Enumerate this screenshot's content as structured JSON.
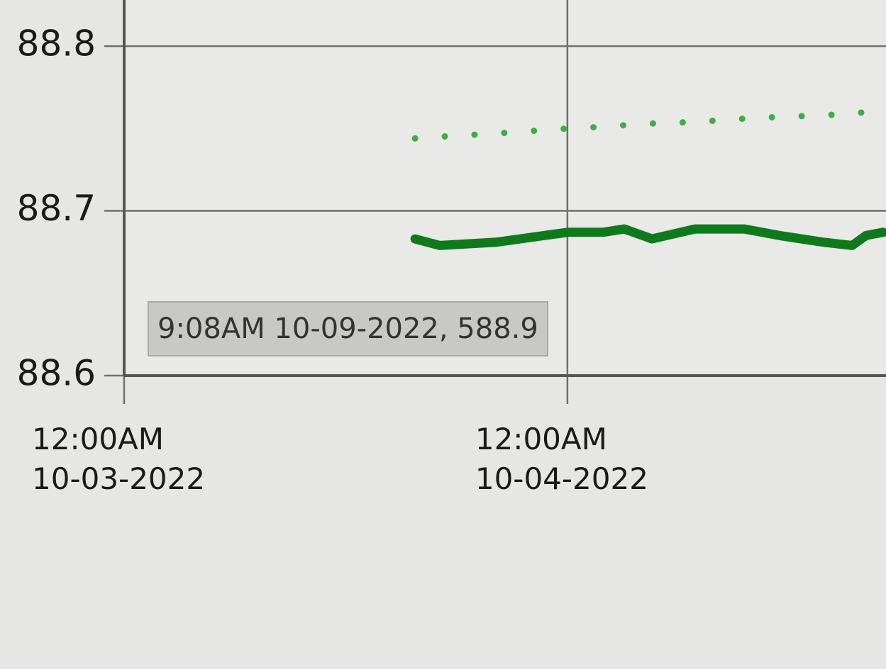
{
  "chart_data": {
    "type": "line",
    "x": [
      "2022-10-03T15:45",
      "2022-10-03T17:05",
      "2022-10-03T20:10",
      "2022-10-04T00:00",
      "2022-10-04T01:55",
      "2022-10-04T03:05",
      "2022-10-04T04:35",
      "2022-10-04T06:55",
      "2022-10-04T09:35",
      "2022-10-04T11:30",
      "2022-10-04T13:50",
      "2022-10-04T15:25",
      "2022-10-04T16:10",
      "2022-10-04T17:05"
    ],
    "series": [
      {
        "color": "#0f7a1c",
        "style": "solid",
        "values": [
          88.683,
          88.679,
          88.681,
          88.687,
          88.687,
          88.689,
          88.683,
          88.689,
          88.689,
          88.685,
          88.681,
          88.679,
          88.685,
          88.687
        ]
      },
      {
        "color": "#3fae42",
        "style": "dotted",
        "values": [
          88.744,
          88.745,
          88.747,
          88.75,
          88.751,
          88.752,
          88.753,
          88.754,
          88.756,
          88.757,
          88.758,
          88.759,
          88.76,
          88.761
        ]
      }
    ],
    "xlim": [
      "2022-10-03T00:00",
      "2022-10-04T17:15"
    ],
    "xticks": [
      {
        "value": "2022-10-03T00:00",
        "label": "12:00AM\n10-03-2022"
      },
      {
        "value": "2022-10-04T00:00",
        "label": "12:00AM\n10-04-2022"
      }
    ],
    "ylim": [
      88.6,
      88.828
    ],
    "yticks": [
      88.6,
      88.7,
      88.8
    ],
    "grid": true,
    "tooltip": "9:08AM 10-09-2022, 588.9"
  }
}
